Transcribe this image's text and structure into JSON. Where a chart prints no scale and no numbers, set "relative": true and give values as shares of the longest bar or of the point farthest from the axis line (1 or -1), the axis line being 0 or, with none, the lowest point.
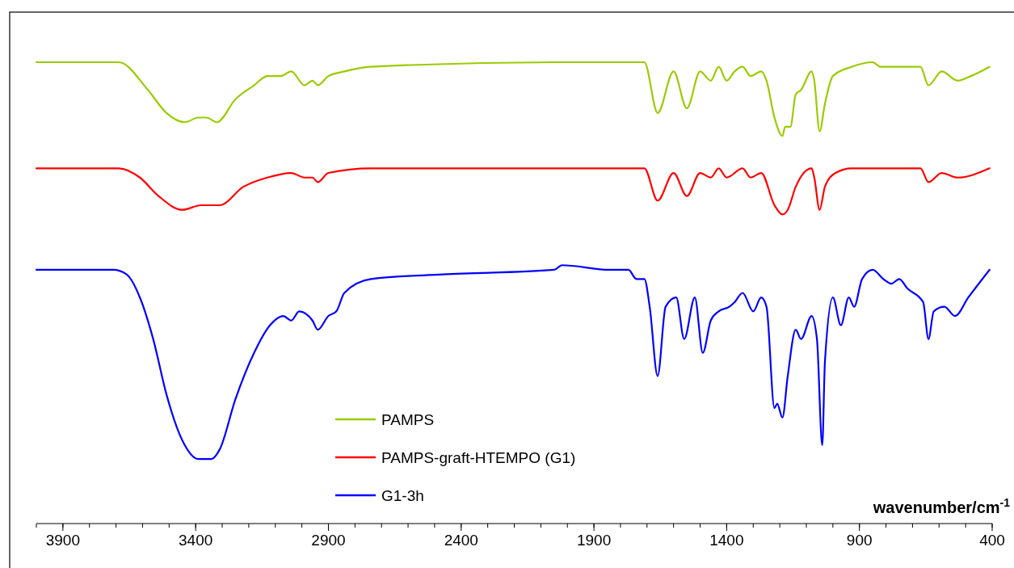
{
  "chart_data": {
    "type": "line",
    "relative": true,
    "xlabel": "wavenumber/cm$^{-1}$",
    "xlim": [
      4000,
      400
    ],
    "xticks": [
      3900,
      3400,
      2900,
      2400,
      1900,
      1400,
      900,
      400
    ],
    "legend": "bottom",
    "grid": false,
    "tick_labels": "x",
    "series": [
      {
        "name": "PAMPS",
        "color": "#99cc00",
        "x": [
          4000,
          3690,
          3580,
          3510,
          3440,
          3390,
          3360,
          3320,
          3250,
          3180,
          3130,
          3080,
          3040,
          2990,
          2960,
          2940,
          2900,
          2840,
          2740,
          2050,
          1840,
          1710,
          1660,
          1600,
          1550,
          1500,
          1460,
          1430,
          1400,
          1370,
          1340,
          1310,
          1270,
          1250,
          1220,
          1190,
          1180,
          1160,
          1140,
          1120,
          1080,
          1070,
          1050,
          1030,
          1000,
          930,
          850,
          820,
          750,
          670,
          640,
          590,
          530,
          480,
          410
        ],
        "values": [
          1.0,
          1.0,
          0.94,
          0.89,
          0.87,
          0.88,
          0.88,
          0.87,
          0.92,
          0.95,
          0.97,
          0.97,
          0.98,
          0.95,
          0.96,
          0.95,
          0.97,
          0.98,
          0.99,
          1.0,
          1.0,
          1.0,
          0.89,
          0.98,
          0.9,
          0.98,
          0.96,
          0.99,
          0.96,
          0.98,
          0.99,
          0.97,
          0.98,
          0.96,
          0.88,
          0.84,
          0.86,
          0.86,
          0.93,
          0.94,
          0.98,
          0.96,
          0.85,
          0.91,
          0.97,
          0.99,
          1.0,
          0.99,
          0.99,
          0.99,
          0.95,
          0.98,
          0.96,
          0.97,
          0.99
        ]
      },
      {
        "name": "PAMPS-graft-HTEMPO (G1)",
        "color": "#ff0000",
        "x": [
          4000,
          3690,
          3610,
          3540,
          3450,
          3380,
          3310,
          3220,
          3130,
          3040,
          2990,
          2960,
          2940,
          2900,
          2740,
          1840,
          1710,
          1660,
          1600,
          1550,
          1500,
          1460,
          1430,
          1400,
          1340,
          1310,
          1270,
          1220,
          1190,
          1170,
          1140,
          1080,
          1070,
          1050,
          1030,
          990,
          930,
          850,
          820,
          670,
          640,
          590,
          530,
          410
        ],
        "values": [
          0.77,
          0.77,
          0.75,
          0.71,
          0.68,
          0.69,
          0.69,
          0.73,
          0.75,
          0.76,
          0.75,
          0.75,
          0.74,
          0.76,
          0.77,
          0.77,
          0.77,
          0.7,
          0.76,
          0.71,
          0.76,
          0.75,
          0.77,
          0.75,
          0.77,
          0.75,
          0.76,
          0.69,
          0.67,
          0.68,
          0.73,
          0.77,
          0.75,
          0.68,
          0.73,
          0.76,
          0.77,
          0.77,
          0.77,
          0.77,
          0.74,
          0.76,
          0.75,
          0.77
        ]
      },
      {
        "name": "G1-3h",
        "color": "#0000ff",
        "x": [
          4000,
          3710,
          3660,
          3610,
          3560,
          3510,
          3450,
          3390,
          3340,
          3310,
          3250,
          3180,
          3120,
          3070,
          3040,
          3010,
          2960,
          2940,
          2900,
          2870,
          2840,
          2740,
          2470,
          2050,
          2020,
          1840,
          1770,
          1740,
          1710,
          1690,
          1660,
          1630,
          1590,
          1560,
          1520,
          1490,
          1460,
          1430,
          1390,
          1370,
          1340,
          1300,
          1270,
          1250,
          1220,
          1210,
          1190,
          1170,
          1140,
          1120,
          1080,
          1060,
          1040,
          1030,
          1000,
          970,
          940,
          920,
          890,
          850,
          810,
          780,
          750,
          720,
          660,
          640,
          620,
          580,
          540,
          490,
          410
        ],
        "values": [
          0.55,
          0.55,
          0.54,
          0.49,
          0.4,
          0.28,
          0.18,
          0.14,
          0.14,
          0.16,
          0.27,
          0.37,
          0.43,
          0.45,
          0.44,
          0.46,
          0.44,
          0.42,
          0.45,
          0.46,
          0.5,
          0.53,
          0.54,
          0.55,
          0.56,
          0.55,
          0.55,
          0.53,
          0.53,
          0.47,
          0.32,
          0.47,
          0.49,
          0.4,
          0.49,
          0.37,
          0.44,
          0.46,
          0.47,
          0.48,
          0.5,
          0.46,
          0.49,
          0.47,
          0.25,
          0.26,
          0.23,
          0.32,
          0.42,
          0.4,
          0.45,
          0.4,
          0.17,
          0.35,
          0.49,
          0.43,
          0.49,
          0.47,
          0.53,
          0.55,
          0.53,
          0.52,
          0.53,
          0.51,
          0.48,
          0.4,
          0.46,
          0.47,
          0.45,
          0.49,
          0.55
        ]
      }
    ]
  }
}
